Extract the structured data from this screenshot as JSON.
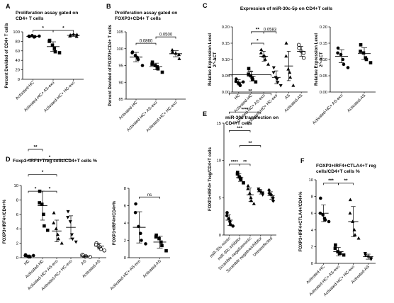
{
  "chart_data": [
    {
      "id": "A",
      "type": "scatter",
      "title": "Proliferation assay gated on CD4+ T cells",
      "ylabel": "Percent Devided of CD4+ T cells",
      "ylim": [
        0,
        100
      ],
      "yticks": [
        0,
        20,
        40,
        60,
        80,
        100
      ],
      "categories": [
        "Activated-HC",
        "Activated-HC+ AS-exo",
        "Activated-HC+ HC-exo"
      ],
      "marker": [
        "circle",
        "square",
        "triangle"
      ],
      "points": [
        [
          90,
          91,
          92,
          89,
          90,
          91
        ],
        [
          82,
          80,
          72,
          65,
          58,
          56
        ],
        [
          91,
          93,
          95,
          90,
          94
        ]
      ],
      "means": [
        90.5,
        69,
        92.6
      ],
      "sds": [
        1,
        10,
        2
      ],
      "annotations": [
        {
          "text": "*",
          "from": 0,
          "to": 1,
          "y": 103
        },
        {
          "text": "*",
          "from": 1,
          "to": 2,
          "y": 103
        }
      ]
    },
    {
      "id": "B",
      "type": "scatter",
      "title": "Proliferation assay gated on FOXP3+CD4+ T cells",
      "ylabel": "Percent Devided of FOXP3+CD4+ T cells",
      "ylim": [
        85,
        105
      ],
      "yticks": [
        85,
        90,
        95,
        100,
        105
      ],
      "categories": [
        "Activated-HC",
        "Activated-HC+ AS-exo",
        "Activated-HC+ HC-exo"
      ],
      "marker": [
        "circle",
        "square",
        "triangle"
      ],
      "points": [
        [
          99,
          98.8,
          98,
          97.4,
          96.8,
          95
        ],
        [
          96,
          95.4,
          95,
          94.6,
          94,
          93
        ],
        [
          99.6,
          99,
          98.6,
          98.2,
          97
        ]
      ],
      "means": [
        97.5,
        94.7,
        98.5
      ],
      "sds": [
        1.4,
        1,
        0.9
      ],
      "annotations": [
        {
          "text": "0.0860",
          "from": 0,
          "to": 1,
          "y": 101.6
        },
        {
          "text": "0.0500",
          "from": 1,
          "to": 2,
          "y": 103.5
        }
      ]
    },
    {
      "id": "C1",
      "type": "scatter",
      "title": "Expression of miR-30c-5p on CD4+T cells",
      "ylabel": "Relative Expression Level 2^-ΔCT",
      "ylim": [
        0,
        0.2
      ],
      "yticks": [
        0,
        0.05,
        0.1,
        0.15,
        0.2
      ],
      "categories": [
        "HC",
        "Activated-HC",
        "Activated-HC+ AS-exo",
        "Activated-HC+ HC-exo",
        "AS",
        "Activated-AS"
      ],
      "marker": [
        "circle",
        "square",
        "triangle",
        "triangle-down",
        "triangle",
        "circle-open"
      ],
      "points": [
        [
          0.04,
          0.033,
          0.028,
          0.024,
          0.02,
          0.031
        ],
        [
          0.072,
          0.055,
          0.05,
          0.044,
          0.038,
          0.031
        ],
        [
          0.13,
          0.12,
          0.11,
          0.11,
          0.1,
          0.085
        ],
        [
          0.075,
          0.06,
          0.045,
          0.04,
          0.03,
          0.02
        ],
        [
          0.15,
          0.11,
          0.07,
          0.06,
          0.045,
          0.02
        ],
        [
          0.145,
          0.135,
          0.125,
          0.12,
          0.105
        ]
      ],
      "means": [
        0.03,
        0.048,
        0.11,
        0.045,
        0.08,
        0.125
      ],
      "sds": [
        0.008,
        0.014,
        0.015,
        0.02,
        0.045,
        0.015
      ],
      "annotations": [
        {
          "text": "**",
          "from": 1,
          "to": 2,
          "y": 0.185
        },
        {
          "text": "0.0583",
          "from": 2,
          "to": 3,
          "y": 0.185
        },
        {
          "text": "*",
          "from": 1,
          "to": 2,
          "y": 0.15
        }
      ]
    },
    {
      "id": "C2",
      "type": "scatter",
      "ylabel": "Relative Expression Level 2^-ΔCT",
      "ylim": [
        0,
        0.2
      ],
      "yticks": [
        0,
        0.05,
        0.1,
        0.15,
        0.2
      ],
      "categories": [
        "Activated-HC+ AS-exo",
        "Activated-AS"
      ],
      "marker": [
        "circle",
        "square"
      ],
      "points": [
        [
          0.135,
          0.12,
          0.115,
          0.1,
          0.085,
          0.075
        ],
        [
          0.145,
          0.125,
          0.12,
          0.105,
          0.1,
          0.09
        ]
      ],
      "means": [
        0.11,
        0.118
      ],
      "sds": [
        0.02,
        0.018
      ]
    },
    {
      "id": "D1",
      "type": "scatter",
      "title": "Foxp3+IRF4+Treg cells/CD4+T cells %",
      "ylabel": "FOXP3+IRF4+/CD4+%",
      "ylim": [
        0,
        10
      ],
      "yticks": [
        0,
        2,
        4,
        6,
        8,
        10
      ],
      "categories": [
        "HC",
        "Activated-HC",
        "Activated-HC+ AS-exo",
        "Activated-HC+ HC-exo",
        "AS",
        "Activated-AS"
      ],
      "marker": [
        "circle",
        "square",
        "triangle",
        "triangle-down",
        "circle-open",
        "circle-open"
      ],
      "points": [
        [
          0.4,
          0.3,
          0.2,
          0.2,
          0.1,
          0.3
        ],
        [
          9.2,
          7.6,
          7.4,
          6,
          4.4,
          3.8
        ],
        [
          6.2,
          4.8,
          4,
          3.2,
          2.6,
          2
        ],
        [
          6.4,
          5.6,
          5,
          3.2,
          2.6,
          2.2
        ],
        [
          0.4,
          0.3,
          0.2,
          0.1
        ],
        [
          2,
          1.8,
          1.6,
          1.4,
          1.2,
          1
        ]
      ],
      "means": [
        0.25,
        7.2,
        3.7,
        4.2,
        0.2,
        1.6
      ],
      "sds": [
        0.1,
        2,
        1.5,
        1.6,
        0.1,
        0.4
      ],
      "annotations": [
        {
          "text": "*",
          "from": 0,
          "to": 1,
          "y": 9.2
        },
        {
          "text": "*",
          "from": 1,
          "to": 2,
          "y": 9.2
        },
        {
          "text": "*",
          "from": 0,
          "to": 2,
          "y": 11.5
        },
        {
          "text": "*",
          "from": 0,
          "to": 3,
          "y": 13.6
        },
        {
          "text": "**",
          "from": 0,
          "to": 1,
          "y": 15
        }
      ]
    },
    {
      "id": "D2",
      "type": "scatter",
      "ylabel": "FOXP3+IRF4+/CD4+%",
      "ylim": [
        0,
        8
      ],
      "yticks": [
        0,
        2,
        4,
        6,
        8
      ],
      "categories": [
        "Activated-HC+ AS-exo",
        "Activated-AS"
      ],
      "marker": [
        "circle",
        "square"
      ],
      "points": [
        [
          6.2,
          5.2,
          3.6,
          2.8,
          2,
          1.6
        ],
        [
          2.6,
          2.4,
          2.2,
          1.8,
          1.4,
          0.8
        ]
      ],
      "means": [
        3.5,
        1.8
      ],
      "sds": [
        1.8,
        0.7
      ],
      "annotations": [
        {
          "text": "ns",
          "from": 0,
          "to": 1,
          "y": 7
        }
      ]
    },
    {
      "id": "E",
      "type": "scatter",
      "title": "miR-30c transfection on CD4+T cells",
      "ylabel": "FOXP3+IRF4+ Treg/CD4+T cells",
      "ylim": [
        0,
        15
      ],
      "yticks": [
        0,
        5,
        10,
        15
      ],
      "categories": [
        "miR-30c mimic",
        "miR-30c inhibitor",
        "Scramble negativemimic",
        "Scramble negativeinhibitor",
        "Untransfected"
      ],
      "marker": [
        "circle",
        "square",
        "triangle",
        "triangle-down",
        "diamond"
      ],
      "points": [
        [
          3,
          2.6,
          2.2,
          1.8,
          1.4,
          1.2
        ],
        [
          8.4,
          8.2,
          7.8,
          7.6,
          7.4,
          7
        ],
        [
          6.6,
          6.2,
          5.6,
          5,
          4.6,
          4.2
        ],
        [
          6.2,
          6,
          5.8,
          5.6,
          5.4
        ],
        [
          6,
          5.6,
          5.4,
          5,
          4.6
        ]
      ],
      "means": [
        2,
        7.7,
        5.4,
        5.8,
        5.3
      ],
      "sds": [
        0.7,
        0.5,
        0.9,
        0.3,
        0.5
      ],
      "annotations": [
        {
          "text": "****",
          "from": 0,
          "to": 1,
          "y": 9.5
        },
        {
          "text": "**",
          "from": 1,
          "to": 2,
          "y": 9.5
        },
        {
          "text": "**",
          "from": 1,
          "to": 3,
          "y": 12
        },
        {
          "text": "***",
          "from": 0,
          "to": 2,
          "y": 14
        },
        {
          "text": "****",
          "from": 0,
          "to": 3,
          "y": 16.5
        },
        {
          "text": "**",
          "from": 0,
          "to": 4,
          "y": 19
        },
        {
          "text": "***",
          "from": 0,
          "to": 4,
          "y": 21.5
        }
      ]
    },
    {
      "id": "F",
      "type": "scatter",
      "title": "FOXP3+IRF4+CTLA4+T reg cells/CD4+T cells %",
      "ylabel": "FOXP3+IRF4+CTLA4+/CD4+%",
      "ylim": [
        0,
        10
      ],
      "yticks": [
        0,
        2,
        4,
        6,
        8,
        10
      ],
      "categories": [
        "Activated-HC",
        "Activated-HC+ AS-exo",
        "Activated-HC+ HC-exo",
        "Activated-AS"
      ],
      "marker": [
        "circle",
        "square",
        "triangle",
        "triangle-down"
      ],
      "points": [
        [
          7.8,
          6,
          5.8,
          5.4,
          5.2,
          5
        ],
        [
          2.2,
          1.8,
          1.4,
          1.2,
          1.2,
          1
        ],
        [
          7.6,
          6,
          5,
          4,
          3.4,
          3
        ],
        [
          1.2,
          1,
          0.8,
          0.6,
          0.5
        ]
      ],
      "means": [
        6,
        1.4,
        5,
        0.8
      ],
      "sds": [
        1,
        0.5,
        1.8,
        0.3
      ],
      "annotations": [
        {
          "text": "***",
          "from": 0,
          "to": 1,
          "y": 9.6
        },
        {
          "text": "**",
          "from": 1,
          "to": 2,
          "y": 9.6
        }
      ]
    }
  ],
  "panel_letters": {
    "A": "A",
    "B": "B",
    "C": "C",
    "D": "D",
    "E": "E",
    "F": "F"
  },
  "titles": {
    "A": [
      "Proliferation assay gated on",
      "CD4+ T cells"
    ],
    "B": [
      "Proliferation assay gated on",
      "FOXP3+CD4+ T cells"
    ],
    "C": [
      "Expression of miR-30c-5p on CD4+T cells"
    ],
    "D": [
      "Foxp3+IRF4+Treg cells/CD4+T cells %"
    ],
    "E": [
      "miR-30c transfection on",
      "CD4+T cells"
    ],
    "F": [
      "FOXP3+IRF4+CTLA4+T reg",
      "cells/CD4+T cells %"
    ]
  },
  "ylabels": {
    "A": [
      "Percent Devided of CD4+ T cells"
    ],
    "B": [
      "Percent Devided of FOXP3+CD4+ T cells"
    ],
    "C1": [
      "Relative Expression Level",
      "2^-ΔCT"
    ],
    "C2": [
      "Relative Expression Level",
      "2^-ΔCT"
    ],
    "D1": [
      "FOXP3+IRF4+/CD4+%"
    ],
    "D2": [
      "FOXP3+IRF4+/CD4+%"
    ],
    "E": [
      "FOXP3+IRF4+ Treg/CD4+T cells"
    ],
    "F": [
      "FOXP3+IRF4+CTLA4+/CD4+%"
    ]
  }
}
